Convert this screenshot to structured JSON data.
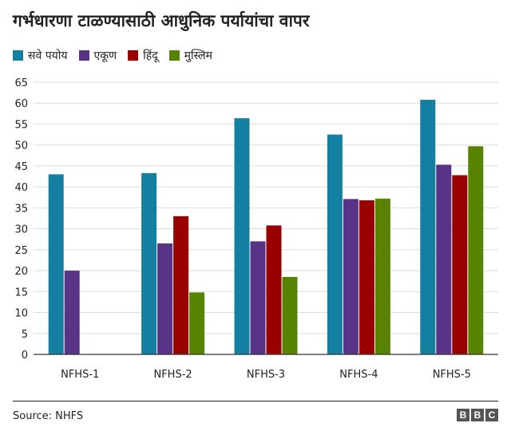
{
  "chart_data": {
    "type": "bar",
    "title": "गर्भधारणा टाळण्यासाठी आधुनिक पर्यायांचा वापर",
    "categories": [
      "NFHS-1",
      "NFHS-2",
      "NFHS-3",
      "NFHS-4",
      "NFHS-5"
    ],
    "series": [
      {
        "name": "सवे पयोय",
        "color": "#1380A1",
        "values": [
          43,
          43.3,
          56.4,
          52.5,
          60.8
        ]
      },
      {
        "name": "एकूण",
        "color": "#583387",
        "values": [
          20,
          26.5,
          27,
          37.1,
          45.3
        ]
      },
      {
        "name": "हिंदू",
        "color": "#990000",
        "values": [
          null,
          33,
          30.8,
          36.8,
          42.8
        ]
      },
      {
        "name": "मुस्लिम",
        "color": "#588300",
        "values": [
          null,
          14.8,
          18.5,
          37.2,
          49.7
        ]
      }
    ],
    "ylim": [
      0,
      65
    ],
    "yticks": [
      0,
      5,
      10,
      15,
      20,
      25,
      30,
      35,
      40,
      45,
      50,
      55,
      60,
      65
    ],
    "grid": true,
    "legend_position": "top-left",
    "xlabel": "",
    "ylabel": ""
  },
  "footer": {
    "source": "Source: NHFS",
    "logo_letters": [
      "B",
      "B",
      "C"
    ]
  }
}
